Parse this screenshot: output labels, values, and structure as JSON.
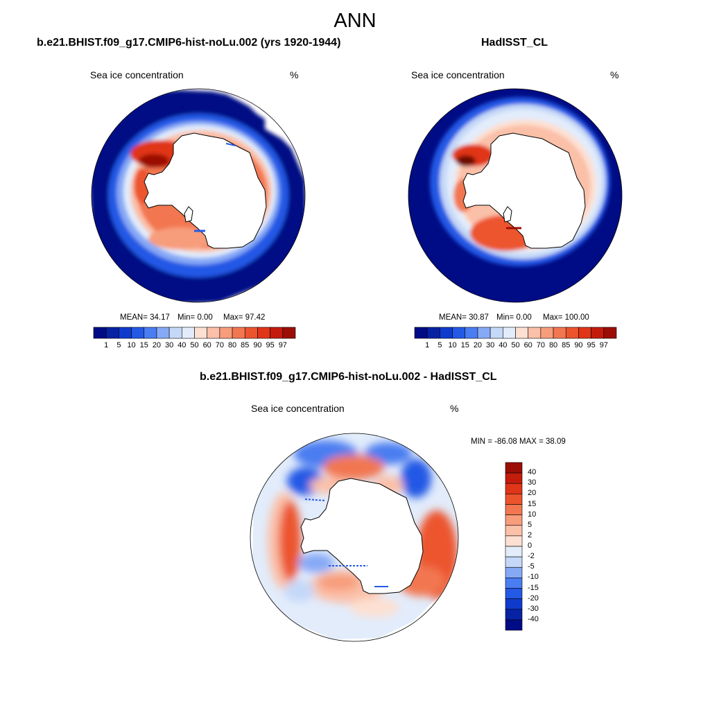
{
  "figure": {
    "title": "ANN",
    "colors": {
      "abs_scale": [
        "#000c85",
        "#0722a3",
        "#0f3bcd",
        "#2459e5",
        "#4a7df1",
        "#86a9f6",
        "#c5d8f8",
        "#e2ecfb",
        "#fde0d2",
        "#fbc0a8",
        "#f79d7b",
        "#f27751",
        "#ec542e",
        "#e03518",
        "#c31c0c",
        "#9b0e05",
        "#700a03"
      ],
      "diff_scale": [
        "#000c85",
        "#0722a3",
        "#0f3bcd",
        "#2459e5",
        "#4a7df1",
        "#86a9f6",
        "#c5d8f8",
        "#e2ecfb",
        "#fde0d2",
        "#fbc0a8",
        "#f79d7b",
        "#f27751",
        "#ec542e",
        "#e03518",
        "#c31c0c",
        "#9b0e05",
        "#700a03"
      ]
    }
  },
  "panels": [
    {
      "title": "b.e21.BHIST.f09_g17.CMIP6-hist-noLu.002 (yrs 1920-1944)",
      "variable": "Sea ice concentration",
      "units": "%",
      "mean": "MEAN=  34.17",
      "min": "Min=    0.00",
      "max": "Max=  97.42"
    },
    {
      "title": "HadISST_CL",
      "variable": "Sea ice concentration",
      "units": "%",
      "mean": "MEAN=  30.87",
      "min": "Min=    0.00",
      "max": "Max= 100.00"
    },
    {
      "title": "b.e21.BHIST.f09_g17.CMIP6-hist-noLu.002 - HadISST_CL",
      "variable": "Sea ice concentration",
      "units": "%",
      "minmax": "MIN = -86.08 MAX =  38.09"
    }
  ],
  "abs_colorbar": {
    "labels": [
      "1",
      "5",
      "10",
      "15",
      "20",
      "30",
      "40",
      "50",
      "60",
      "70",
      "80",
      "85",
      "90",
      "95",
      "97"
    ]
  },
  "diff_colorbar": {
    "labels": [
      "40",
      "30",
      "20",
      "15",
      "10",
      "5",
      "2",
      "0",
      "-2",
      "-5",
      "-10",
      "-15",
      "-20",
      "-30",
      "-40"
    ]
  }
}
